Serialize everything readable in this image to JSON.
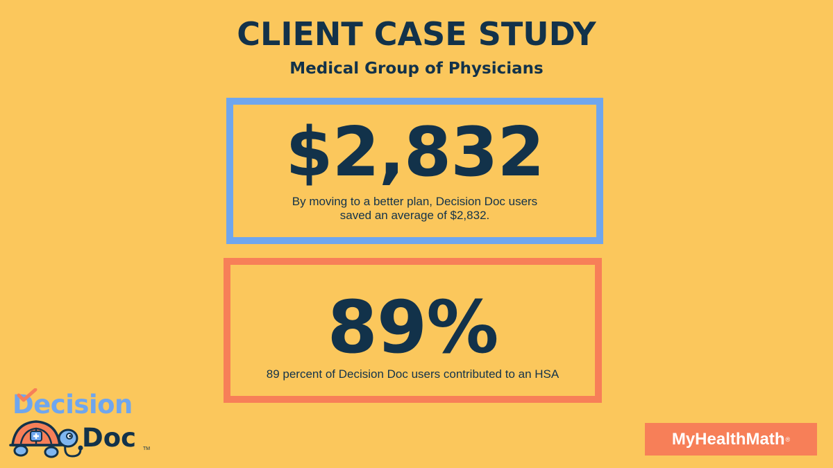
{
  "header": {
    "title": "CLIENT CASE STUDY",
    "subtitle": "Medical Group of Physicians"
  },
  "stats": [
    {
      "value": "$2,832",
      "caption": "By moving to a better plan, Decision Doc users saved an average of $2,832.",
      "border_color": "#6FA6EE"
    },
    {
      "value": "89%",
      "caption": "89 percent of Decision Doc users contributed to an HSA",
      "border_color": "#F77F58"
    }
  ],
  "logo": {
    "word1": "Decision",
    "word2": "Doc",
    "tm": "TM",
    "icon": "turtle-doctor-icon"
  },
  "brand_badge": {
    "label": "MyHealthMath",
    "reg": "®"
  },
  "colors": {
    "background": "#FBC75C",
    "navy": "#12324A",
    "blue": "#6FA6EE",
    "coral": "#F77F58"
  }
}
